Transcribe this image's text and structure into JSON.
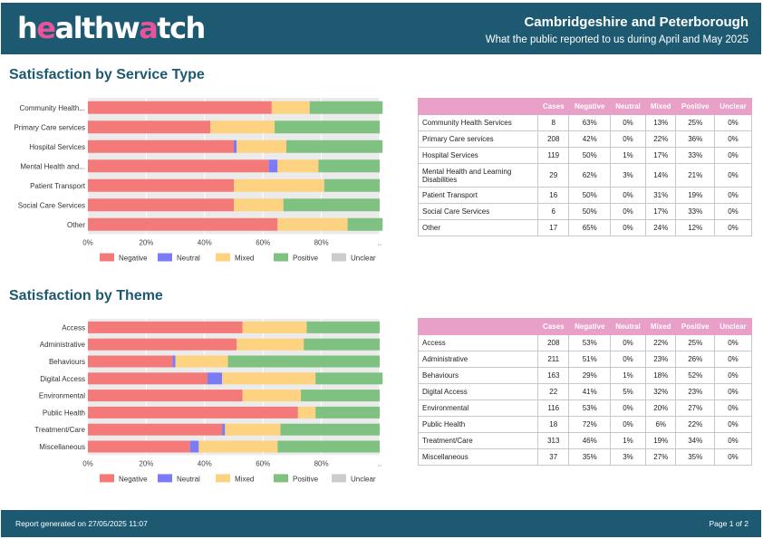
{
  "header": {
    "logo_part1": "h",
    "logo_accent1": "e",
    "logo_part2": "althw",
    "logo_accent2": "a",
    "logo_part3": "tch",
    "region": "Cambridgeshire and Peterborough",
    "period": "What the public reported to us during April and May 2025"
  },
  "sections": {
    "service_title": "Satisfaction by Service Type",
    "theme_title": "Satisfaction by Theme"
  },
  "colors": {
    "brand": "#1d5a72",
    "negative": "#f47a7a",
    "neutral": "#7b7bf7",
    "mixed": "#fdd280",
    "positive": "#7fc180",
    "unclear": "#cccccc",
    "table_header": "#e8a0c8"
  },
  "chart_data": [
    {
      "type": "bar",
      "orientation": "horizontal",
      "stacked": true,
      "categories": [
        "Community Health...",
        "Primary Care services",
        "Hospital Services",
        "Mental Health and...",
        "Patient Transport",
        "Social Care Services",
        "Other"
      ],
      "series": [
        {
          "name": "Negative",
          "values": [
            63,
            42,
            50,
            62,
            50,
            50,
            65
          ]
        },
        {
          "name": "Neutral",
          "values": [
            0,
            0,
            1,
            3,
            0,
            0,
            0
          ]
        },
        {
          "name": "Mixed",
          "values": [
            13,
            22,
            17,
            14,
            31,
            17,
            24
          ]
        },
        {
          "name": "Positive",
          "values": [
            25,
            36,
            33,
            21,
            19,
            33,
            12
          ]
        },
        {
          "name": "Unclear",
          "values": [
            0,
            0,
            0,
            0,
            0,
            0,
            0
          ]
        }
      ],
      "xtick_labels": [
        "0%",
        "20%",
        "40%",
        "60%",
        "80%",
        ".."
      ],
      "xlim": [
        0,
        100
      ],
      "grid": true,
      "legend_position": "bottom"
    },
    {
      "type": "bar",
      "orientation": "horizontal",
      "stacked": true,
      "categories": [
        "Access",
        "Administrative",
        "Behaviours",
        "Digital Access",
        "Environmental",
        "Public Health",
        "Treatment/Care",
        "Miscellaneous"
      ],
      "series": [
        {
          "name": "Negative",
          "values": [
            53,
            51,
            29,
            41,
            53,
            72,
            46,
            35
          ]
        },
        {
          "name": "Neutral",
          "values": [
            0,
            0,
            1,
            5,
            0,
            0,
            1,
            3
          ]
        },
        {
          "name": "Mixed",
          "values": [
            22,
            23,
            18,
            32,
            20,
            6,
            19,
            27
          ]
        },
        {
          "name": "Positive",
          "values": [
            25,
            26,
            52,
            23,
            27,
            22,
            34,
            35
          ]
        },
        {
          "name": "Unclear",
          "values": [
            0,
            0,
            0,
            0,
            0,
            0,
            0,
            0
          ]
        }
      ],
      "xtick_labels": [
        "0%",
        "20%",
        "40%",
        "60%",
        "80%",
        ".."
      ],
      "xlim": [
        0,
        100
      ],
      "grid": true,
      "legend_position": "bottom"
    }
  ],
  "service_table": {
    "headers": [
      "",
      "Cases",
      "Negative",
      "Neutral",
      "Mixed",
      "Positive",
      "Unclear"
    ],
    "rows": [
      [
        "Community Health Services",
        "8",
        "63%",
        "0%",
        "13%",
        "25%",
        "0%"
      ],
      [
        "Primary Care services",
        "208",
        "42%",
        "0%",
        "22%",
        "36%",
        "0%"
      ],
      [
        "Hospital Services",
        "119",
        "50%",
        "1%",
        "17%",
        "33%",
        "0%"
      ],
      [
        "Mental Health and Learning Disabilities",
        "29",
        "62%",
        "3%",
        "14%",
        "21%",
        "0%"
      ],
      [
        "Patient Transport",
        "16",
        "50%",
        "0%",
        "31%",
        "19%",
        "0%"
      ],
      [
        "Social Care Services",
        "6",
        "50%",
        "0%",
        "17%",
        "33%",
        "0%"
      ],
      [
        "Other",
        "17",
        "65%",
        "0%",
        "24%",
        "12%",
        "0%"
      ]
    ]
  },
  "theme_table": {
    "headers": [
      "",
      "Cases",
      "Negative",
      "Neutral",
      "Mixed",
      "Positive",
      "Unclear"
    ],
    "rows": [
      [
        "Access",
        "208",
        "53%",
        "0%",
        "22%",
        "25%",
        "0%"
      ],
      [
        "Administrative",
        "211",
        "51%",
        "0%",
        "23%",
        "26%",
        "0%"
      ],
      [
        "Behaviours",
        "163",
        "29%",
        "1%",
        "18%",
        "52%",
        "0%"
      ],
      [
        "Digital Access",
        "22",
        "41%",
        "5%",
        "32%",
        "23%",
        "0%"
      ],
      [
        "Environmental",
        "116",
        "53%",
        "0%",
        "20%",
        "27%",
        "0%"
      ],
      [
        "Public Health",
        "18",
        "72%",
        "0%",
        "6%",
        "22%",
        "0%"
      ],
      [
        "Treatment/Care",
        "313",
        "46%",
        "1%",
        "19%",
        "34%",
        "0%"
      ],
      [
        "Miscellaneous",
        "37",
        "35%",
        "3%",
        "27%",
        "35%",
        "0%"
      ]
    ]
  },
  "footer": {
    "generated": "Report generated on 27/05/2025 11:07",
    "page": "Page 1 of 2"
  }
}
